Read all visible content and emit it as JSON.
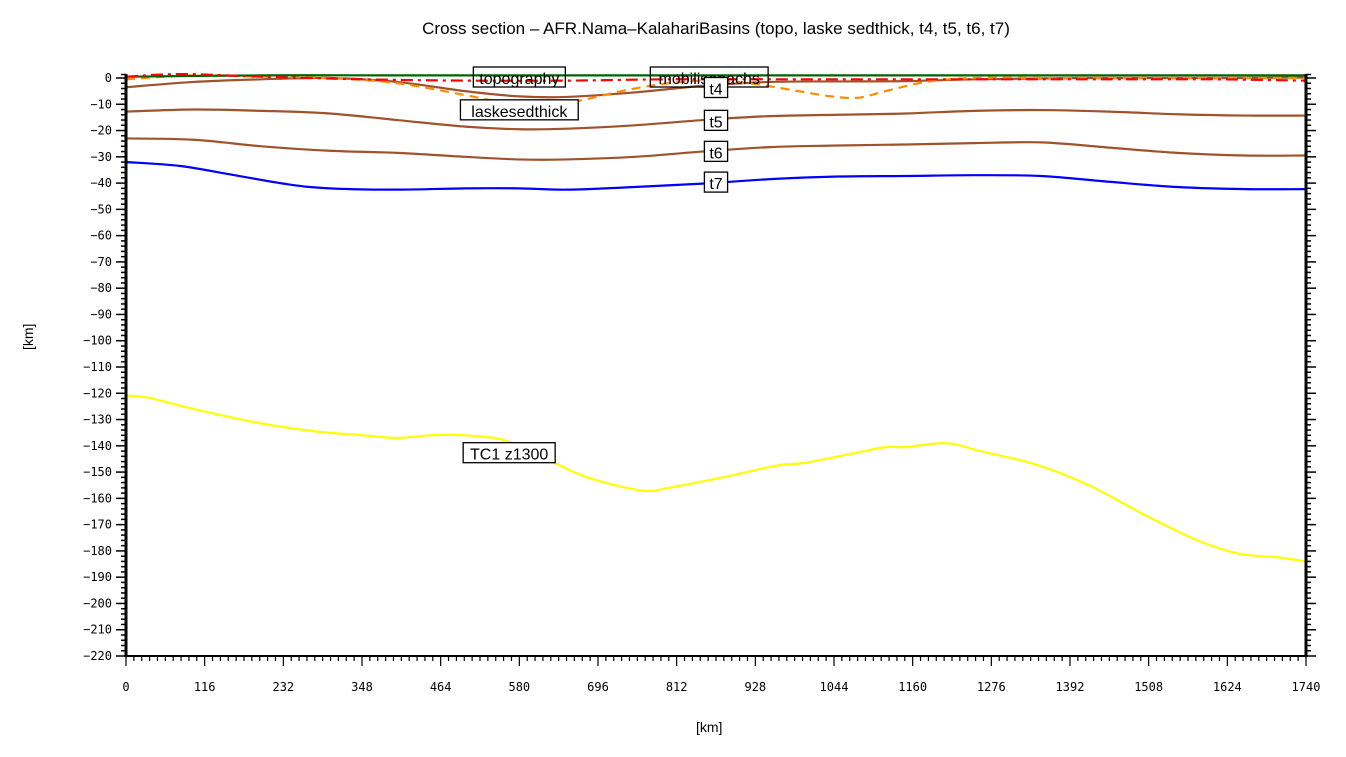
{
  "chart_data": {
    "type": "line",
    "title": "Cross section – AFR.Nama–KalahariBasins (topo, laske sedthick, t4, t5, t6, t7)",
    "xlabel": "[km]",
    "ylabel": "[km]",
    "xlim": [
      0,
      1740
    ],
    "ylim": [
      -220,
      0
    ],
    "x_ticks": [
      0,
      116,
      232,
      348,
      464,
      580,
      696,
      812,
      928,
      1044,
      1160,
      1276,
      1392,
      1508,
      1624,
      1740
    ],
    "y_ticks": [
      0,
      -10,
      -20,
      -30,
      -40,
      -50,
      -60,
      -70,
      -80,
      -90,
      -100,
      -110,
      -120,
      -130,
      -140,
      -150,
      -160,
      -170,
      -180,
      -190,
      -200,
      -210,
      -220
    ],
    "grid": false,
    "legend": "inline labels",
    "series": [
      {
        "name": "topography",
        "label": "topography",
        "color": "#006400",
        "style": "solid",
        "x": [
          0,
          200,
          400,
          600,
          800,
          1000,
          1200,
          1400,
          1600,
          1740
        ],
        "y": [
          0.5,
          1.0,
          1.0,
          1.0,
          1.0,
          1.0,
          1.0,
          1.0,
          1.0,
          1.0
        ]
      },
      {
        "name": "mobilisopachs",
        "label": "mobilisopachs",
        "color": "#ff0000",
        "style": "dashdot",
        "x": [
          0,
          80,
          200,
          350,
          500,
          650,
          800,
          1000,
          1200,
          1400,
          1600,
          1740
        ],
        "y": [
          0.5,
          1.5,
          0.5,
          -0.5,
          -1.0,
          -1.0,
          -0.5,
          -0.5,
          -0.5,
          -0.5,
          -0.5,
          -1.0
        ]
      },
      {
        "name": "laskesedthick",
        "label": "laskesedthick",
        "color": "#ff8c00",
        "style": "dashed",
        "x": [
          0,
          100,
          200,
          300,
          400,
          500,
          560,
          620,
          680,
          740,
          800,
          860,
          920,
          980,
          1040,
          1080,
          1120,
          1180,
          1250,
          1400,
          1600,
          1740
        ],
        "y": [
          -0.5,
          1.0,
          0.5,
          0,
          -2,
          -6.5,
          -9.5,
          -11,
          -8,
          -4.5,
          -2,
          -1,
          -2,
          -4.5,
          -7,
          -7.5,
          -5,
          -1.5,
          0,
          0,
          0,
          0
        ]
      },
      {
        "name": "t4",
        "label": "t4",
        "color": "#a0522d",
        "style": "solid",
        "x": [
          0,
          100,
          200,
          300,
          400,
          500,
          580,
          650,
          750,
          850,
          950,
          1050,
          1150,
          1250,
          1400,
          1600,
          1740
        ],
        "y": [
          -3.5,
          -1.5,
          -0.5,
          0,
          -1.5,
          -5,
          -7,
          -7.2,
          -5.5,
          -3.0,
          -1.5,
          -1.3,
          -1.2,
          -0.5,
          0,
          0,
          0.2
        ]
      },
      {
        "name": "t5",
        "label": "t5",
        "color": "#a0522d",
        "style": "solid",
        "x": [
          0,
          100,
          200,
          300,
          400,
          500,
          580,
          650,
          750,
          850,
          950,
          1050,
          1150,
          1250,
          1350,
          1450,
          1550,
          1650,
          1740
        ],
        "y": [
          -12.8,
          -12,
          -12.5,
          -13.5,
          -16,
          -18.5,
          -19.5,
          -19.3,
          -18,
          -16,
          -14.5,
          -14,
          -13.5,
          -12.5,
          -12.2,
          -12.8,
          -13.8,
          -14.3,
          -14.3
        ]
      },
      {
        "name": "t6",
        "label": "t6",
        "color": "#a0522d",
        "style": "solid",
        "x": [
          0,
          100,
          200,
          300,
          400,
          500,
          580,
          650,
          750,
          850,
          950,
          1050,
          1150,
          1250,
          1350,
          1450,
          1550,
          1650,
          1740
        ],
        "y": [
          -23,
          -23.5,
          -26,
          -27.7,
          -28.5,
          -30,
          -31,
          -31,
          -30,
          -28,
          -26.3,
          -25.7,
          -25.3,
          -24.8,
          -24.5,
          -26.5,
          -28.5,
          -29.5,
          -29.5
        ]
      },
      {
        "name": "t7",
        "label": "t7",
        "color": "#0000ff",
        "style": "solid",
        "x": [
          0,
          80,
          160,
          240,
          300,
          400,
          500,
          580,
          650,
          750,
          850,
          950,
          1050,
          1150,
          1250,
          1350,
          1450,
          1550,
          1650,
          1740
        ],
        "y": [
          -32,
          -33.5,
          -37,
          -40.5,
          -42,
          -42.5,
          -42,
          -42,
          -42.5,
          -41.5,
          -40.2,
          -38.5,
          -37.5,
          -37.3,
          -37,
          -37.3,
          -39.5,
          -41.5,
          -42.3,
          -42.3
        ]
      },
      {
        "name": "TC1 z1300",
        "label": "TC1  z1300",
        "color": "#ffff00",
        "style": "solid",
        "x": [
          0,
          30,
          100,
          200,
          280,
          350,
          400,
          450,
          500,
          560,
          620,
          680,
          760,
          800,
          880,
          960,
          1000,
          1070,
          1120,
          1150,
          1210,
          1260,
          1340,
          1420,
          1500,
          1580,
          1640,
          1700,
          1740
        ],
        "y": [
          -121,
          -121.5,
          -126,
          -131.5,
          -134.5,
          -136,
          -137,
          -136,
          -136,
          -138,
          -145,
          -152,
          -157,
          -156,
          -152,
          -147.5,
          -146.5,
          -143,
          -140.5,
          -140.5,
          -139,
          -142,
          -147,
          -155,
          -166,
          -176,
          -181,
          -182.5,
          -184
        ]
      }
    ],
    "annotations": [
      {
        "text": "topography",
        "x": 580,
        "y": 0
      },
      {
        "text": "mobilisopachs",
        "x": 860,
        "y": 0
      },
      {
        "text": "laskesedthick",
        "x": 580,
        "y": -12.5
      },
      {
        "text": "t4",
        "x": 870,
        "y": -4
      },
      {
        "text": "t5",
        "x": 870,
        "y": -16.5
      },
      {
        "text": "t6",
        "x": 870,
        "y": -28.3
      },
      {
        "text": "t7",
        "x": 870,
        "y": -40
      },
      {
        "text": "TC1  z1300",
        "x": 565,
        "y": -143
      }
    ]
  }
}
